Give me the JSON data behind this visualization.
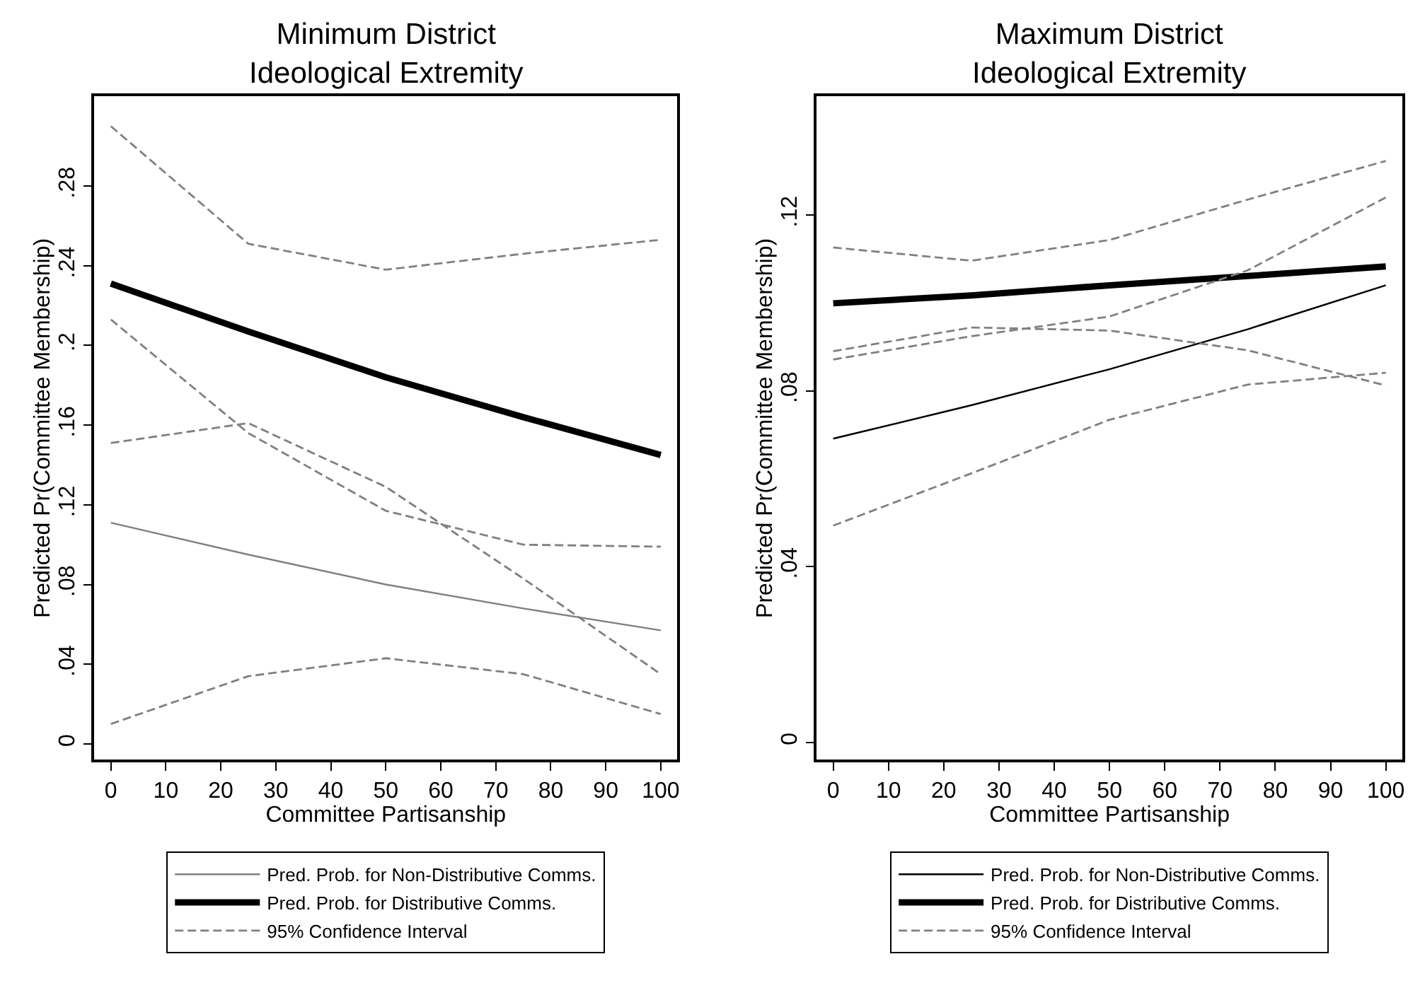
{
  "chart_data": [
    {
      "type": "line",
      "title": "Minimum District\nIdeological Extremity",
      "xlabel": "Committee Partisanship",
      "ylabel": "Predicted Pr(Committee Membership)",
      "x": [
        0,
        25,
        50,
        75,
        100
      ],
      "xlim": [
        -3,
        103
      ],
      "xticks": [
        0,
        10,
        20,
        30,
        40,
        50,
        60,
        70,
        80,
        90,
        100
      ],
      "ylim": [
        -0.008,
        0.325
      ],
      "yticks": [
        0,
        {
          "value": 0.04,
          "label": ".04"
        },
        {
          "value": 0.08,
          "label": ".08"
        },
        {
          "value": 0.12,
          "label": ".12"
        },
        {
          "value": 0.16,
          "label": ".16"
        },
        {
          "value": 0.2,
          "label": ".2"
        },
        {
          "value": 0.24,
          "label": ".24"
        },
        {
          "value": 0.28,
          "label": ".28"
        }
      ],
      "grid": false,
      "legend": "bottom",
      "marker": "none",
      "series": [
        {
          "name": "Pred. Prob. for Non-Distributive Comms.",
          "color": "#808080",
          "line_style": "solid",
          "values": [
            0.111,
            0.095,
            0.08,
            0.068,
            0.057
          ]
        },
        {
          "name": "Pred. Prob. for Distributive Comms.",
          "color": "#000000",
          "line_style": "solid",
          "values": [
            0.231,
            0.207,
            0.184,
            0.164,
            0.145
          ]
        },
        {
          "name": "95% Confidence Interval",
          "color": "#808080",
          "line_style": "dashed",
          "values": [
            0.31,
            0.251,
            0.238,
            0.246,
            0.253
          ]
        },
        {
          "color": "#808080",
          "line_style": "dashed",
          "values": [
            0.213,
            0.156,
            0.117,
            0.1,
            0.099
          ]
        },
        {
          "color": "#808080",
          "line_style": "dashed",
          "values": [
            0.151,
            0.161,
            0.129,
            0.083,
            0.035
          ]
        },
        {
          "color": "#808080",
          "line_style": "dashed",
          "values": [
            0.01,
            0.034,
            0.043,
            0.035,
            0.015
          ]
        }
      ]
    },
    {
      "type": "line",
      "title": "Maximum District\nIdeological Extremity",
      "xlabel": "Committee Partisanship",
      "ylabel": "Predicted Pr(Committee Membership)",
      "x": [
        0,
        25,
        50,
        75,
        100
      ],
      "xlim": [
        -3,
        103
      ],
      "xticks": [
        0,
        10,
        20,
        30,
        40,
        50,
        60,
        70,
        80,
        90,
        100
      ],
      "ylim": [
        -0.004,
        0.147
      ],
      "yticks": [
        0,
        {
          "value": 0.04,
          "label": ".04"
        },
        {
          "value": 0.08,
          "label": ".08"
        },
        {
          "value": 0.12,
          "label": ".12"
        }
      ],
      "grid": false,
      "legend": "bottom",
      "marker": "none",
      "series": [
        {
          "name": "Pred. Prob. for Non-Distributive Comms.",
          "color": "#000000",
          "line_style": "solid",
          "values": [
            0.0691,
            0.0767,
            0.0849,
            0.094,
            0.104
          ]
        },
        {
          "name": "Pred. Prob. for Distributive Comms.",
          "color": "#000000",
          "line_style": "solid",
          "values": [
            0.0999,
            0.1017,
            0.104,
            0.1061,
            0.1083
          ]
        },
        {
          "name": "95% Confidence Interval",
          "color": "#808080",
          "line_style": "dashed",
          "values": [
            0.1126,
            0.1096,
            0.1143,
            0.1235,
            0.1323
          ]
        },
        {
          "color": "#808080",
          "line_style": "dashed",
          "values": [
            0.089,
            0.0944,
            0.0937,
            0.0892,
            0.0812
          ]
        },
        {
          "color": "#808080",
          "line_style": "dashed",
          "values": [
            0.0871,
            0.0924,
            0.0969,
            0.1074,
            0.124
          ]
        },
        {
          "color": "#808080",
          "line_style": "dashed",
          "values": [
            0.0493,
            0.0612,
            0.0734,
            0.0814,
            0.0841
          ]
        }
      ]
    }
  ]
}
